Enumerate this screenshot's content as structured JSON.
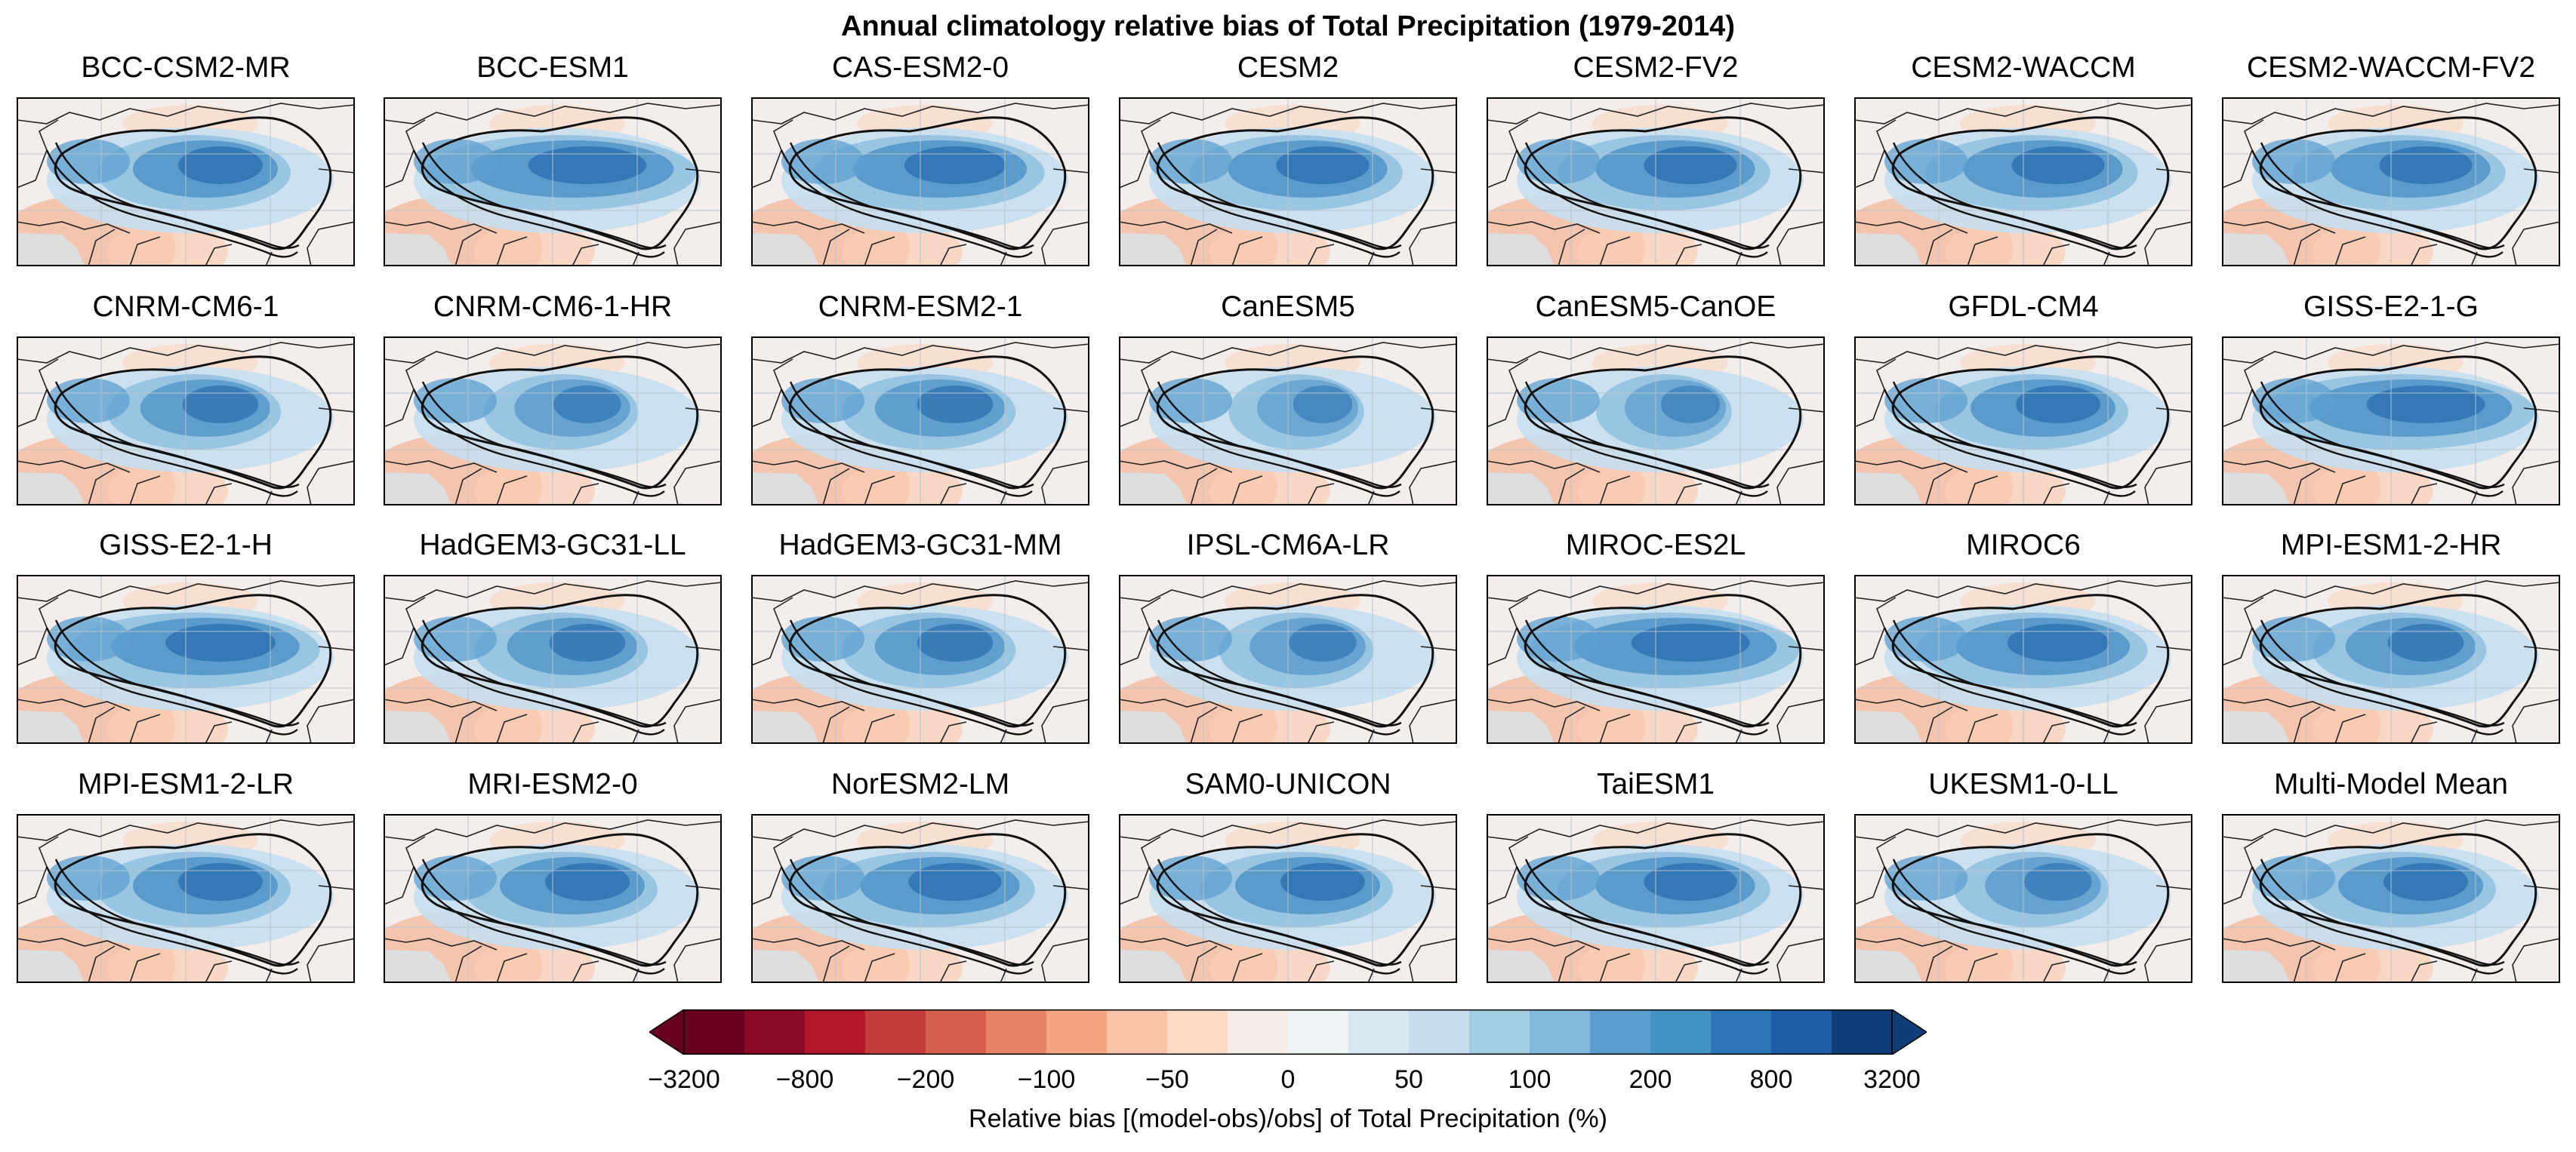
{
  "title": "Annual climatology relative bias of Total Precipitation (1979-2014)",
  "panels": [
    {
      "name": "BCC-CSM2-MR",
      "wet": 1.0
    },
    {
      "name": "BCC-ESM1",
      "wet": 1.4
    },
    {
      "name": "CAS-ESM2-0",
      "wet": 1.2
    },
    {
      "name": "CESM2",
      "wet": 1.1
    },
    {
      "name": "CESM2-FV2",
      "wet": 1.1
    },
    {
      "name": "CESM2-WACCM",
      "wet": 1.1
    },
    {
      "name": "CESM2-WACCM-FV2",
      "wet": 1.1
    },
    {
      "name": "CNRM-CM6-1",
      "wet": 0.9
    },
    {
      "name": "CNRM-CM6-1-HR",
      "wet": 0.8
    },
    {
      "name": "CNRM-ESM2-1",
      "wet": 0.9
    },
    {
      "name": "CanESM5",
      "wet": 0.7
    },
    {
      "name": "CanESM5-CanOE",
      "wet": 0.7
    },
    {
      "name": "GFDL-CM4",
      "wet": 1.0
    },
    {
      "name": "GISS-E2-1-G",
      "wet": 1.4
    },
    {
      "name": "GISS-E2-1-H",
      "wet": 1.3
    },
    {
      "name": "HadGEM3-GC31-LL",
      "wet": 0.9
    },
    {
      "name": "HadGEM3-GC31-MM",
      "wet": 0.9
    },
    {
      "name": "IPSL-CM6A-LR",
      "wet": 0.8
    },
    {
      "name": "MIROC-ES2L",
      "wet": 1.4
    },
    {
      "name": "MIROC6",
      "wet": 1.2
    },
    {
      "name": "MPI-ESM1-2-HR",
      "wet": 0.9
    },
    {
      "name": "MPI-ESM1-2-LR",
      "wet": 1.0
    },
    {
      "name": "MRI-ESM2-0",
      "wet": 1.0
    },
    {
      "name": "NorESM2-LM",
      "wet": 1.1
    },
    {
      "name": "SAM0-UNICON",
      "wet": 1.0
    },
    {
      "name": "TaiESM1",
      "wet": 1.1
    },
    {
      "name": "UKESM1-0-LL",
      "wet": 0.8
    },
    {
      "name": "Multi-Model Mean",
      "wet": 1.0
    }
  ],
  "colorbar": {
    "label": "Relative bias [(model-obs)/obs] of Total Precipitation (%)",
    "colors": [
      "#67001f",
      "#8b0a26",
      "#b2182b",
      "#c43c3c",
      "#d6604d",
      "#e58368",
      "#f4a582",
      "#f9c4a7",
      "#fddbc7",
      "#f6ede9",
      "#eef3f6",
      "#d8e8f1",
      "#c4def0",
      "#a3cde3",
      "#82b8da",
      "#5c9fce",
      "#4393c3",
      "#2e75b5",
      "#1f5da6",
      "#0f3e78"
    ],
    "ticks": [
      "−3200",
      "−800",
      "−200",
      "−100",
      "−50",
      "0",
      "50",
      "100",
      "200",
      "800",
      "3200"
    ]
  }
}
